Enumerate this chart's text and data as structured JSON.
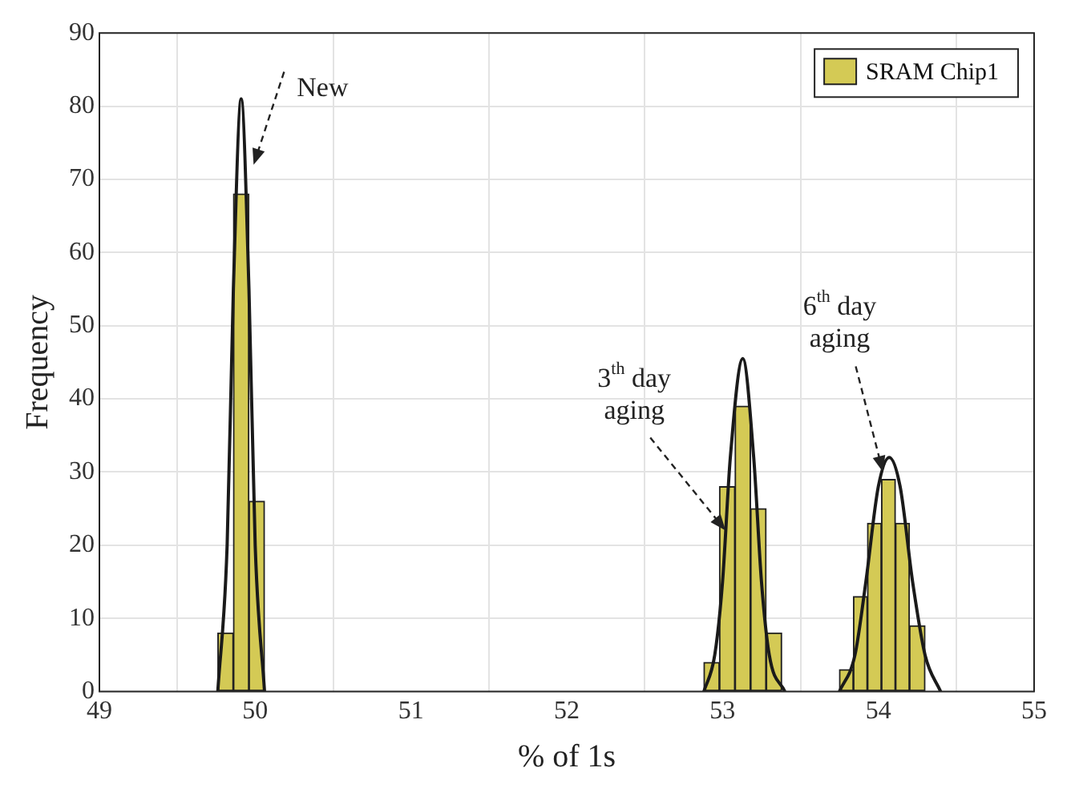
{
  "chart_data": {
    "type": "histogram",
    "xlabel": "% of 1s",
    "ylabel": "Frequency",
    "series": [
      {
        "name": "SRAM Chip1",
        "color": "#d4ca55",
        "bins": [
          49.76,
          49.86,
          49.96,
          50.06,
          52.88,
          52.98,
          53.08,
          53.18,
          53.28,
          53.38,
          53.75,
          53.84,
          53.93,
          54.02,
          54.11,
          54.2,
          54.3
        ],
        "values": [
          8,
          68,
          26,
          0,
          4,
          28,
          39,
          25,
          8,
          0,
          3,
          13,
          23,
          29,
          23,
          9
        ]
      },
      {
        "type": "line",
        "color": "#1a1a1a",
        "x": [
          49.76,
          49.82,
          49.86,
          49.91,
          49.96,
          50.0,
          50.06
        ],
        "values": [
          0,
          20,
          55,
          81,
          55,
          20,
          0
        ]
      },
      {
        "type": "line",
        "color": "#1a1a1a",
        "x": [
          52.88,
          52.95,
          53.0,
          53.05,
          53.13,
          53.2,
          53.25,
          53.3,
          53.4
        ],
        "values": [
          0,
          5,
          15,
          32,
          45.5,
          32,
          15,
          5,
          0
        ]
      },
      {
        "type": "line",
        "color": "#1a1a1a",
        "x": [
          53.75,
          53.85,
          53.92,
          54.0,
          54.07,
          54.14,
          54.22,
          54.3,
          54.4
        ],
        "values": [
          0,
          5,
          15,
          28,
          32,
          28,
          15,
          5,
          0
        ]
      }
    ],
    "annotations": [
      {
        "text": "New",
        "x": 49.99,
        "y": 72
      },
      {
        "text": "3$^{th}$ day aging",
        "x": 53.02,
        "y": 22
      },
      {
        "text": "6$^{th}$ day aging",
        "x": 54.03,
        "y": 30
      }
    ],
    "xlim": [
      49,
      55
    ],
    "xticks": [
      49,
      50,
      51,
      52,
      53,
      54,
      55
    ],
    "ylim": [
      0,
      90
    ],
    "yticks": [
      0,
      10,
      20,
      30,
      40,
      50,
      60,
      70,
      80,
      90
    ],
    "grid": true,
    "legend": "top right",
    "marker": "none",
    "line_style": "solid"
  }
}
